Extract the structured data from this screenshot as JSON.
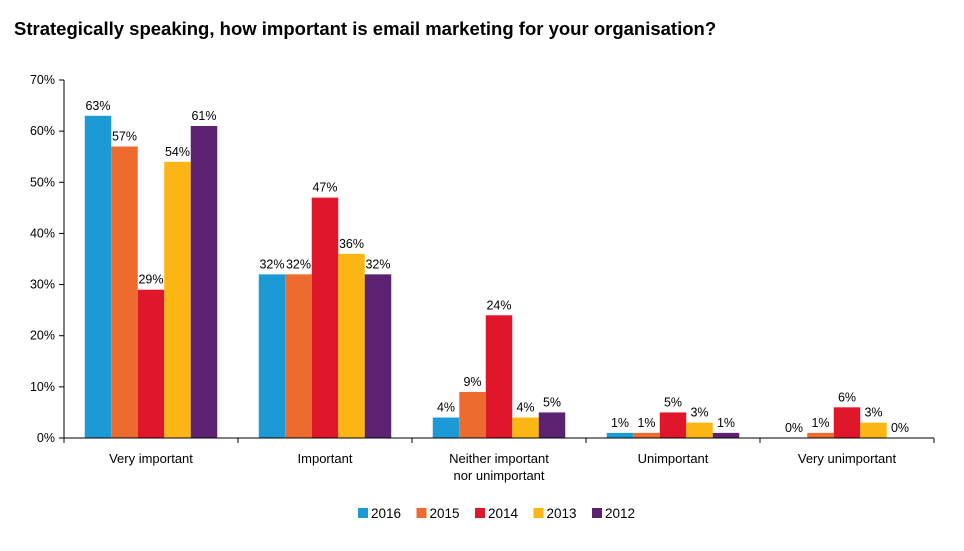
{
  "chart_data": {
    "type": "bar",
    "title": "Strategically speaking, how important is email marketing for your organisation?",
    "xlabel": "",
    "ylabel": "",
    "ylim": [
      0,
      70
    ],
    "yticks": [
      "0%",
      "10%",
      "20%",
      "30%",
      "40%",
      "50%",
      "60%",
      "70%"
    ],
    "grid": false,
    "legend_position": "bottom",
    "categories": [
      [
        "Very important"
      ],
      [
        "Important"
      ],
      [
        "Neither important",
        "nor unimportant"
      ],
      [
        "Unimportant"
      ],
      [
        "Very unimportant"
      ]
    ],
    "series": [
      {
        "name": "2016",
        "color": "#1b9ad6",
        "values": [
          63,
          32,
          4,
          1,
          0
        ],
        "labels": [
          "63%",
          "32%",
          "4%",
          "1%",
          "0%"
        ]
      },
      {
        "name": "2015",
        "color": "#ee6b2f",
        "values": [
          57,
          32,
          9,
          1,
          1
        ],
        "labels": [
          "57%",
          "32%",
          "9%",
          "1%",
          "1%"
        ]
      },
      {
        "name": "2014",
        "color": "#e0162b",
        "values": [
          29,
          47,
          24,
          5,
          6
        ],
        "labels": [
          "29%",
          "47%",
          "24%",
          "5%",
          "6%"
        ]
      },
      {
        "name": "2013",
        "color": "#fbb615",
        "values": [
          54,
          36,
          4,
          3,
          3
        ],
        "labels": [
          "54%",
          "36%",
          "4%",
          "3%",
          "3%"
        ]
      },
      {
        "name": "2012",
        "color": "#5c2271",
        "values": [
          61,
          32,
          5,
          1,
          0
        ],
        "labels": [
          "61%",
          "32%",
          "5%",
          "1%",
          "0%"
        ]
      }
    ]
  }
}
